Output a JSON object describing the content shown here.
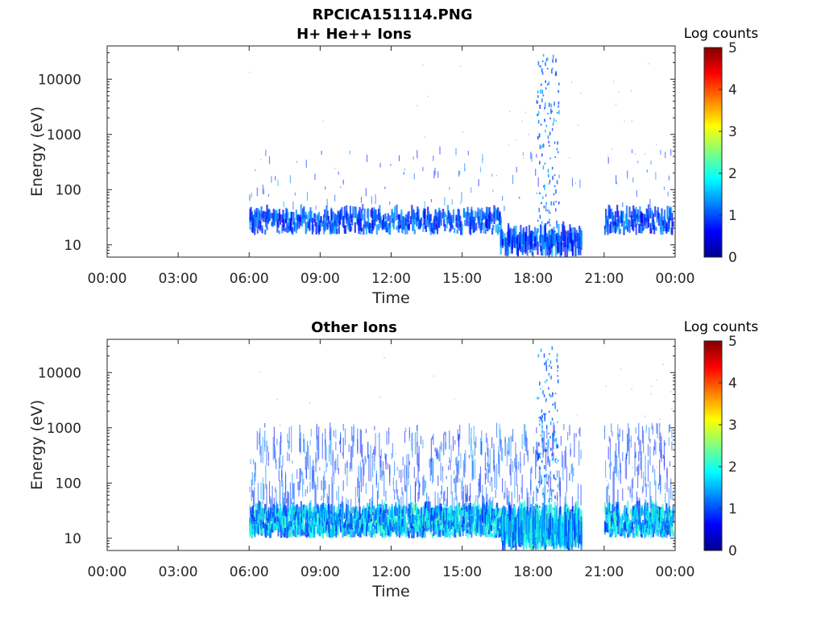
{
  "figure": {
    "title": "RPCICA151114.PNG",
    "colorbar_colormap": [
      "#00008f",
      "#0000ff",
      "#0080ff",
      "#00ffff",
      "#80ff80",
      "#ffff00",
      "#ff8000",
      "#ff0000",
      "#800000"
    ]
  },
  "chart_data": [
    {
      "type": "heatmap",
      "title": "H+ He++ Ions",
      "xlabel": "Time",
      "ylabel": "Energy (eV)",
      "x_ticks": [
        "00:00",
        "03:00",
        "06:00",
        "09:00",
        "12:00",
        "15:00",
        "18:00",
        "21:00",
        "00:00"
      ],
      "x_range_hours": [
        0,
        24
      ],
      "y_ticks": [
        "10",
        "100",
        "1000",
        "10000"
      ],
      "y_scale": "log",
      "y_range": [
        6,
        40000
      ],
      "colorbar": {
        "label": "Log counts",
        "ticks": [
          "0",
          "1",
          "2",
          "3",
          "4",
          "5"
        ],
        "range": [
          0,
          5
        ]
      },
      "data_segments_hours": [
        [
          6.0,
          16.6
        ],
        [
          16.6,
          20.0
        ],
        [
          21.0,
          23.9
        ]
      ],
      "gap_hours": [
        [
          0,
          6.0
        ],
        [
          20.0,
          21.0
        ]
      ],
      "dominant_energy_band_eV": [
        15,
        45
      ],
      "burst_hours": [
        18.1,
        19.0
      ],
      "burst_energy_max_eV": 30000,
      "typical_log_counts": 1,
      "max_log_counts": 2
    },
    {
      "type": "heatmap",
      "title": "Other Ions",
      "xlabel": "Time",
      "ylabel": "Energy (eV)",
      "x_ticks": [
        "00:00",
        "03:00",
        "06:00",
        "09:00",
        "12:00",
        "15:00",
        "18:00",
        "21:00",
        "00:00"
      ],
      "x_range_hours": [
        0,
        24
      ],
      "y_ticks": [
        "10",
        "100",
        "1000",
        "10000"
      ],
      "y_scale": "log",
      "y_range": [
        6,
        40000
      ],
      "colorbar": {
        "label": "Log counts",
        "ticks": [
          "0",
          "1",
          "2",
          "3",
          "4",
          "5"
        ],
        "range": [
          0,
          5
        ]
      },
      "data_segments_hours": [
        [
          6.0,
          20.0
        ],
        [
          21.0,
          23.9
        ]
      ],
      "gap_hours": [
        [
          0,
          6.0
        ],
        [
          20.0,
          21.0
        ]
      ],
      "dominant_energy_band_eV": [
        10,
        45
      ],
      "burst_hours": [
        18.1,
        19.0
      ],
      "burst_energy_max_eV": 30000,
      "typical_log_counts": 1.5,
      "max_log_counts": 3
    }
  ]
}
